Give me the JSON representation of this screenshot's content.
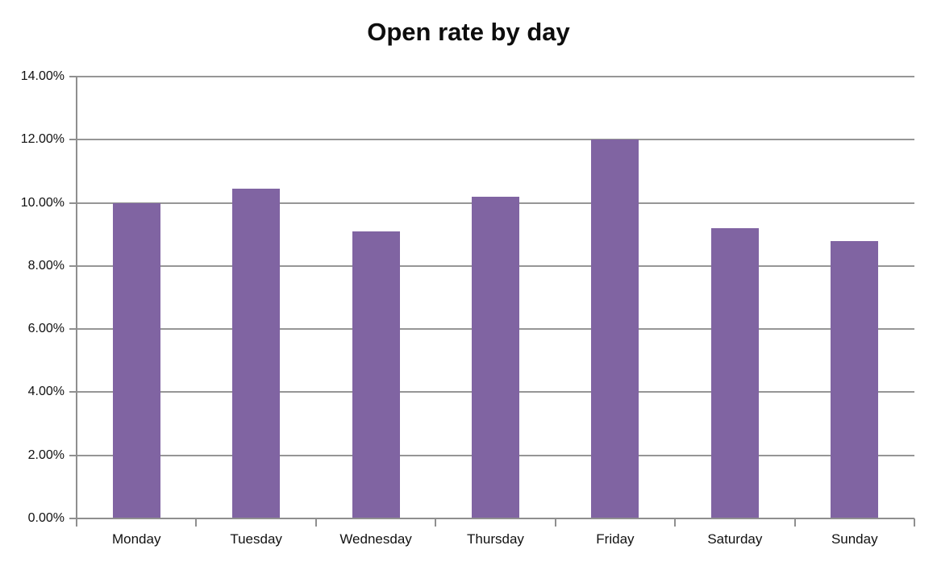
{
  "title": "Open rate by day",
  "colors": {
    "bar": "#8064A2",
    "gridline": "#969696",
    "axis": "#8f8f8f",
    "text": "#111111",
    "background": "#ffffff"
  },
  "chart_data": {
    "type": "bar",
    "title": "Open rate by day",
    "categories": [
      "Monday",
      "Tuesday",
      "Wednesday",
      "Thursday",
      "Friday",
      "Saturday",
      "Sunday"
    ],
    "values": [
      10.0,
      10.45,
      9.1,
      10.2,
      12.0,
      9.2,
      8.8
    ],
    "xlabel": "",
    "ylabel": "",
    "ylim": [
      0,
      14
    ],
    "ytick_step": 2,
    "ytick_labels": [
      "0.00%",
      "2.00%",
      "4.00%",
      "6.00%",
      "8.00%",
      "10.00%",
      "12.00%",
      "14.00%"
    ],
    "grid": true,
    "legend": false,
    "bar_color": "#8064A2"
  }
}
